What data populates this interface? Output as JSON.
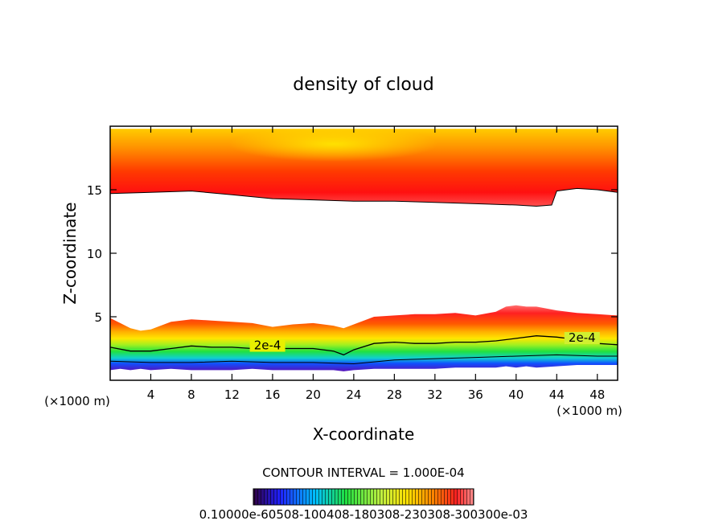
{
  "chart_data": {
    "type": "contour",
    "title": "density of cloud",
    "xlabel": "X-coordinate",
    "ylabel": "Z-coordinate",
    "x_unit": "(×1000 m)",
    "xlim": [
      0,
      50
    ],
    "ylim": [
      0,
      20
    ],
    "x_ticks": [
      4,
      8,
      12,
      16,
      20,
      24,
      28,
      32,
      36,
      40,
      44,
      48
    ],
    "x_tick_labels": [
      "4",
      "8",
      "12",
      "16",
      "20",
      "24",
      "28",
      "32",
      "36",
      "40",
      "44",
      "48"
    ],
    "y_ticks": [
      5,
      10,
      15
    ],
    "y_tick_labels": [
      "5",
      "10",
      "15"
    ],
    "contour_interval_text": "CONTOUR INTERVAL = 1.000E-04",
    "contour_labels": [
      {
        "text": "2e-4",
        "x": 15.5,
        "z": 2.5
      },
      {
        "text": "2e-4",
        "x": 46.5,
        "z": 3.1
      }
    ],
    "colorbar_labels_text": "0.10000e-60508-100408-180308-230308-300300e-03",
    "upper_band": {
      "x": [
        0,
        4,
        8,
        12,
        16,
        20,
        24,
        28,
        32,
        36,
        40,
        42,
        43.5,
        44,
        46,
        48,
        50
      ],
      "bottom": [
        14.7,
        14.8,
        14.9,
        14.6,
        14.3,
        14.2,
        14.1,
        14.1,
        14.0,
        13.9,
        13.8,
        13.7,
        13.8,
        14.9,
        15.1,
        15.0,
        14.8
      ],
      "top": [
        19.8,
        19.8,
        19.8,
        19.8,
        19.8,
        19.8,
        19.8,
        19.8,
        19.8,
        19.8,
        19.8,
        19.8,
        19.8,
        19.8,
        19.8,
        19.8,
        19.8
      ]
    },
    "lower_band": {
      "x": [
        0,
        1,
        2,
        3,
        4,
        6,
        8,
        10,
        12,
        14,
        16,
        18,
        20,
        22,
        23,
        24,
        26,
        28,
        30,
        32,
        34,
        36,
        38,
        39,
        40,
        41,
        42,
        44,
        46,
        48,
        50
      ],
      "top": [
        4.9,
        4.5,
        4.1,
        3.9,
        4.0,
        4.6,
        4.8,
        4.7,
        4.6,
        4.5,
        4.2,
        4.4,
        4.5,
        4.3,
        4.1,
        4.4,
        5.0,
        5.1,
        5.2,
        5.2,
        5.3,
        5.1,
        5.4,
        5.8,
        5.9,
        5.8,
        5.8,
        5.5,
        5.3,
        5.2,
        5.1
      ],
      "bottom": [
        0.8,
        0.9,
        0.8,
        0.9,
        0.8,
        0.9,
        0.8,
        0.8,
        0.8,
        0.9,
        0.8,
        0.8,
        0.8,
        0.8,
        0.7,
        0.8,
        0.9,
        0.9,
        0.9,
        0.9,
        1.0,
        1.0,
        1.0,
        1.1,
        1.0,
        1.1,
        1.0,
        1.1,
        1.2,
        1.2,
        1.2
      ]
    },
    "contour_line_2e4": {
      "x": [
        0,
        2,
        4,
        6,
        8,
        10,
        12,
        14,
        16,
        18,
        20,
        22,
        23,
        24,
        26,
        28,
        30,
        32,
        34,
        36,
        38,
        40,
        42,
        44,
        46,
        48,
        50
      ],
      "z": [
        2.6,
        2.3,
        2.3,
        2.5,
        2.7,
        2.6,
        2.6,
        2.5,
        2.5,
        2.5,
        2.5,
        2.3,
        2.0,
        2.4,
        2.9,
        3.0,
        2.9,
        2.9,
        3.0,
        3.0,
        3.1,
        3.3,
        3.5,
        3.4,
        3.2,
        2.9,
        2.8
      ]
    },
    "contour_line_low": {
      "x": [
        0,
        4,
        8,
        12,
        16,
        20,
        24,
        28,
        32,
        36,
        40,
        44,
        48,
        50
      ],
      "z": [
        1.5,
        1.4,
        1.4,
        1.5,
        1.4,
        1.4,
        1.3,
        1.6,
        1.7,
        1.8,
        1.9,
        2.0,
        1.9,
        1.9
      ]
    },
    "colors": {
      "frame": "#000000",
      "white_gap": "#ffffff",
      "band_red": "#ff2a10",
      "band_orange": "#ff8c00",
      "band_yellow": "#ffe000",
      "band_green": "#30e040",
      "band_blue": "#2060ff",
      "band_purple": "#6010c0"
    }
  }
}
